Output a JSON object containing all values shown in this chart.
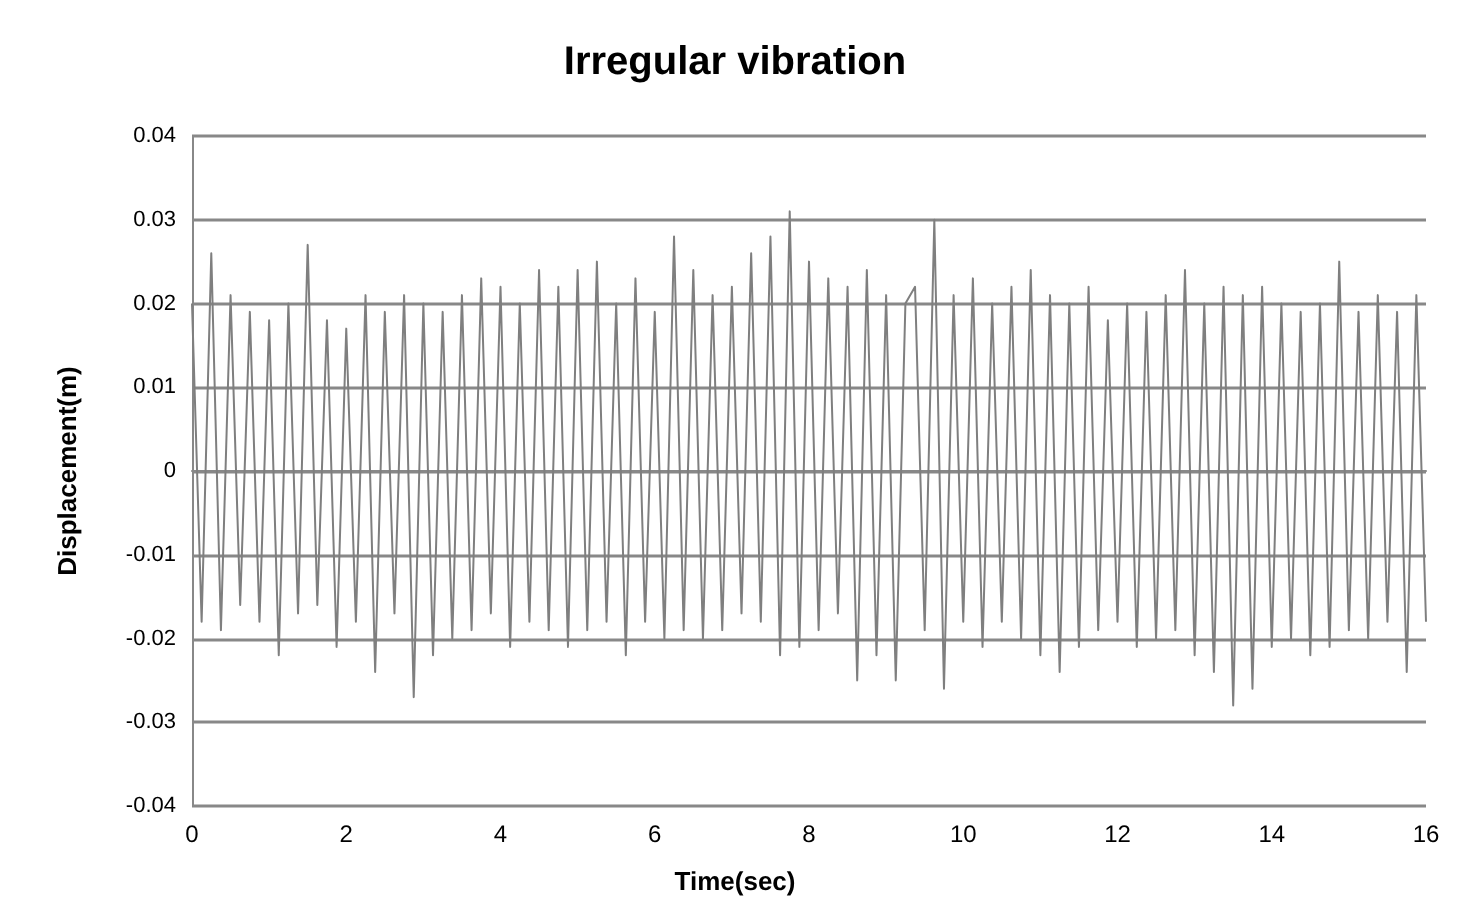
{
  "chart_data": {
    "type": "line",
    "title": "Irregular vibration",
    "xlabel": "Time(sec)",
    "ylabel": "Displacement(m)",
    "x": [
      0,
      0.125,
      0.25,
      0.375,
      0.5,
      0.625,
      0.75,
      0.875,
      1,
      1.125,
      1.25,
      1.375,
      1.5,
      1.625,
      1.75,
      1.875,
      2,
      2.125,
      2.25,
      2.375,
      2.5,
      2.625,
      2.75,
      2.875,
      3,
      3.125,
      3.25,
      3.375,
      3.5,
      3.625,
      3.75,
      3.875,
      4,
      4.125,
      4.25,
      4.375,
      4.5,
      4.625,
      4.75,
      4.875,
      5,
      5.125,
      5.25,
      5.375,
      5.5,
      5.625,
      5.75,
      5.875,
      6,
      6.125,
      6.25,
      6.375,
      6.5,
      6.625,
      6.75,
      6.875,
      7,
      7.125,
      7.25,
      7.375,
      7.5,
      7.625,
      7.75,
      7.875,
      8,
      8.125,
      8.25,
      8.375,
      8.5,
      8.625,
      8.75,
      8.875,
      9,
      9.125,
      9.25,
      9.375,
      9.5,
      9.625,
      9.75,
      9.875,
      10,
      10.125,
      10.25,
      10.375,
      10.5,
      10.625,
      10.75,
      10.875,
      11,
      11.125,
      11.25,
      11.375,
      11.5,
      11.625,
      11.75,
      11.875,
      12,
      12.125,
      12.25,
      12.375,
      12.5,
      12.625,
      12.75,
      12.875,
      13,
      13.125,
      13.25,
      13.375,
      13.5,
      13.625,
      13.75,
      13.875,
      14,
      14.125,
      14.25,
      14.375,
      14.5,
      14.625,
      14.75,
      14.875,
      15,
      15.125,
      15.25,
      15.375,
      15.5,
      15.625,
      15.75,
      15.875,
      16
    ],
    "values": [
      0.02,
      -0.018,
      0.026,
      -0.019,
      0.021,
      -0.016,
      0.019,
      -0.018,
      0.018,
      -0.022,
      0.02,
      -0.017,
      0.027,
      -0.016,
      0.018,
      -0.021,
      0.017,
      -0.018,
      0.021,
      -0.024,
      0.019,
      -0.017,
      0.021,
      -0.027,
      0.02,
      -0.022,
      0.019,
      -0.02,
      0.021,
      -0.019,
      0.023,
      -0.017,
      0.022,
      -0.021,
      0.02,
      -0.018,
      0.024,
      -0.019,
      0.022,
      -0.021,
      0.024,
      -0.019,
      0.025,
      -0.018,
      0.02,
      -0.022,
      0.023,
      -0.018,
      0.019,
      -0.02,
      0.028,
      -0.019,
      0.024,
      -0.02,
      0.021,
      -0.019,
      0.022,
      -0.017,
      0.026,
      -0.018,
      0.028,
      -0.022,
      0.031,
      -0.021,
      0.025,
      -0.019,
      0.023,
      -0.017,
      0.022,
      -0.025,
      0.024,
      -0.022,
      0.021,
      -0.025,
      0.02,
      0.022,
      -0.019,
      0.03,
      -0.026,
      0.021,
      -0.018,
      0.023,
      -0.021,
      0.02,
      -0.018,
      0.022,
      -0.02,
      0.024,
      -0.022,
      0.021,
      -0.024,
      0.02,
      -0.021,
      0.022,
      -0.019,
      0.018,
      -0.018,
      0.02,
      -0.021,
      0.019,
      -0.02,
      0.021,
      -0.019,
      0.024,
      -0.022,
      0.02,
      -0.024,
      0.022,
      -0.028,
      0.021,
      -0.026,
      0.022,
      -0.021,
      0.02,
      -0.02,
      0.019,
      -0.022,
      0.02,
      -0.021,
      0.025,
      -0.019,
      0.019,
      -0.02,
      0.021,
      -0.018,
      0.019,
      -0.024,
      0.021,
      -0.018
    ],
    "color": "#7f7f7f",
    "xlim": [
      0,
      16
    ],
    "xticks": [
      0,
      2,
      4,
      6,
      8,
      10,
      12,
      14,
      16
    ],
    "ylim": [
      -0.04,
      0.04
    ],
    "yticks": [
      -0.04,
      -0.03,
      -0.02,
      -0.01,
      0,
      0.01,
      0.02,
      0.03,
      0.04
    ],
    "grid": "y"
  }
}
